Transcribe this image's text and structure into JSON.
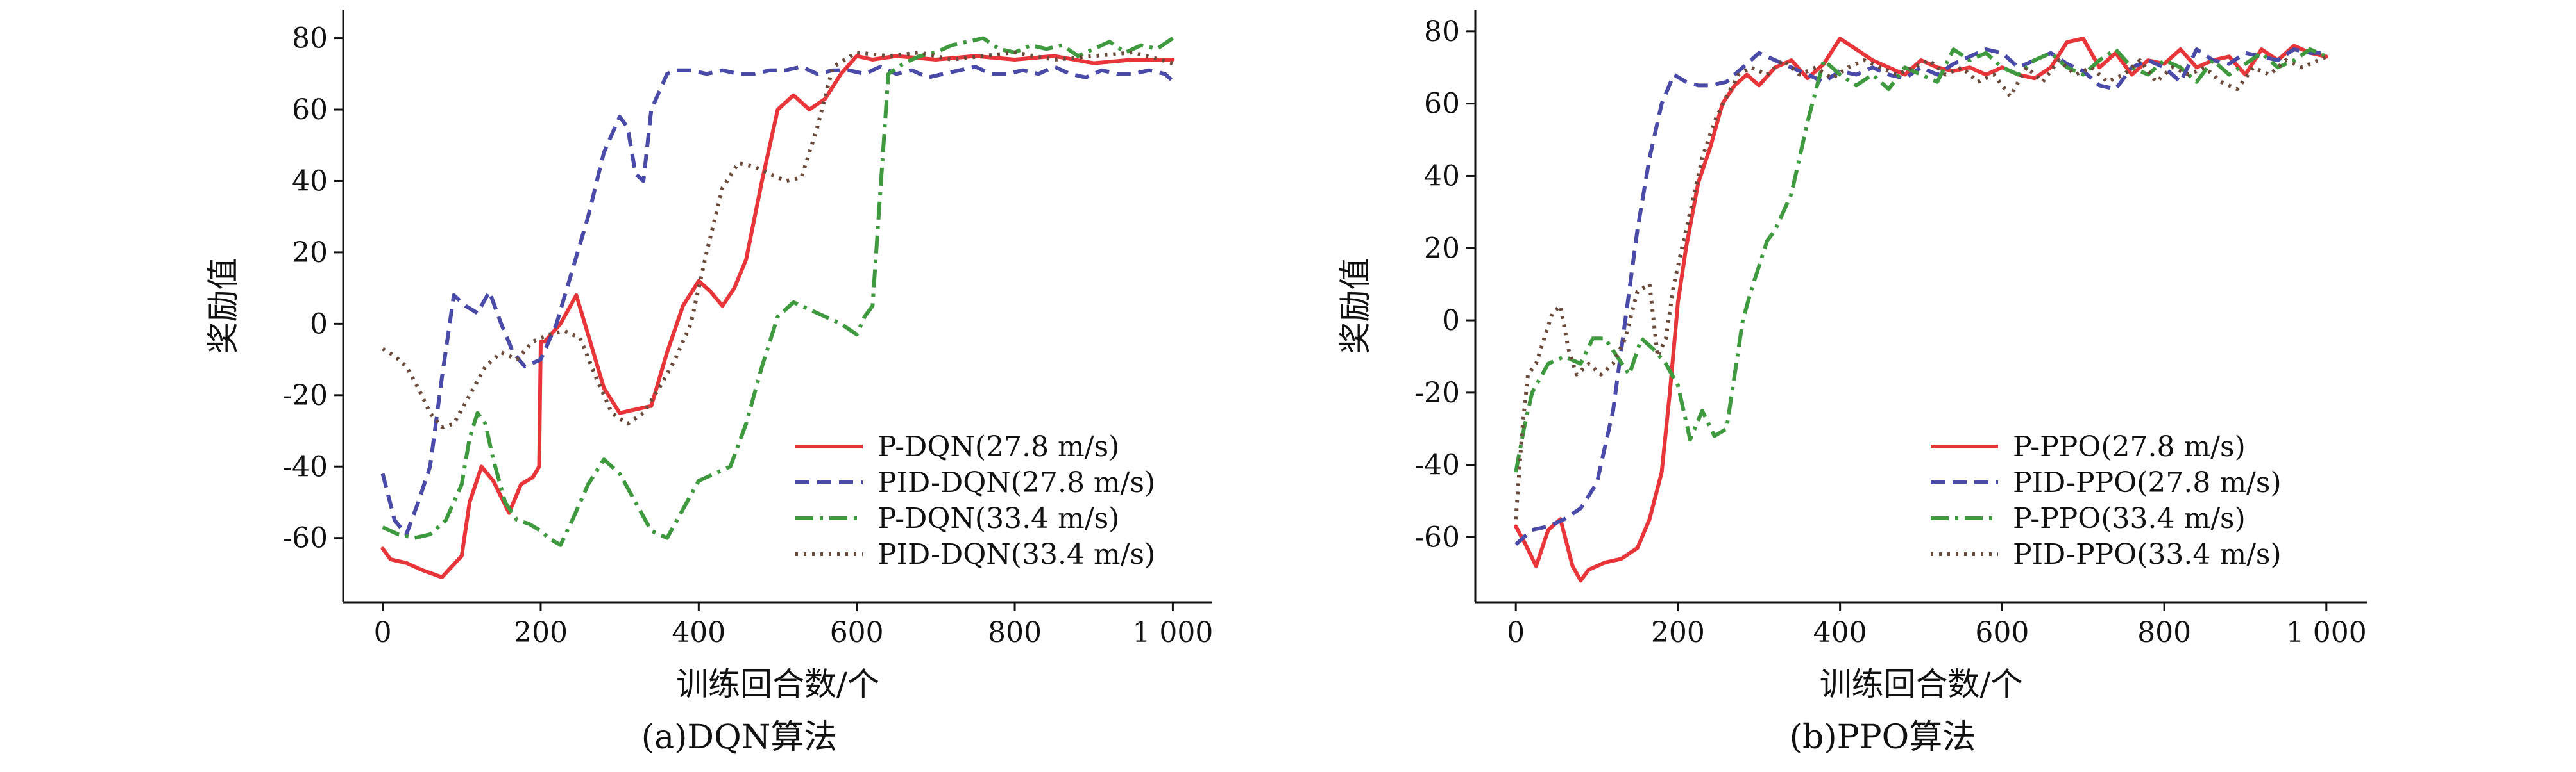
{
  "chart_data": [
    {
      "type": "line",
      "caption": "(a)DQN算法",
      "xlabel": "训练回合数/个",
      "ylabel": "奖励值",
      "xlim": [
        -50,
        1050
      ],
      "ylim": [
        -78,
        88
      ],
      "x_ticks": [
        0,
        200,
        400,
        600,
        800,
        1000
      ],
      "x_tick_labels": [
        "0",
        "200",
        "400",
        "600",
        "800",
        "1 000"
      ],
      "y_ticks": [
        -60,
        -40,
        -20,
        0,
        20,
        40,
        60,
        80
      ],
      "y_tick_labels": [
        "-60",
        "-40",
        "-20",
        "0",
        "20",
        "40",
        "60",
        "80"
      ],
      "legend_position": "bottom-right",
      "series": [
        {
          "name": "P-DQN(27.8 m/s)",
          "color": "#e8353a",
          "dash": "solid",
          "x": [
            0,
            10,
            30,
            50,
            75,
            100,
            110,
            125,
            140,
            160,
            175,
            190,
            198,
            200,
            205,
            225,
            245,
            260,
            280,
            300,
            320,
            340,
            360,
            380,
            400,
            415,
            430,
            445,
            460,
            480,
            500,
            520,
            540,
            560,
            580,
            600,
            620,
            650,
            700,
            750,
            800,
            850,
            900,
            950,
            1000
          ],
          "y": [
            -63,
            -66,
            -67,
            -69,
            -71,
            -65,
            -50,
            -40,
            -44,
            -53,
            -45,
            -43,
            -40,
            -5,
            -5,
            0,
            8,
            -3,
            -18,
            -25,
            -24,
            -23,
            -8,
            5,
            12,
            9,
            5,
            10,
            18,
            40,
            60,
            64,
            60,
            63,
            70,
            75,
            74,
            75,
            74,
            75,
            74,
            75,
            73,
            74,
            74
          ]
        },
        {
          "name": "PID-DQN(27.8 m/s)",
          "color": "#4a4aa8",
          "dash": "dashed",
          "x": [
            0,
            15,
            30,
            45,
            60,
            75,
            90,
            105,
            120,
            135,
            150,
            165,
            180,
            200,
            220,
            240,
            260,
            280,
            300,
            310,
            320,
            330,
            340,
            360,
            370,
            390,
            410,
            430,
            450,
            470,
            490,
            510,
            530,
            550,
            570,
            590,
            610,
            630,
            650,
            670,
            690,
            710,
            730,
            750,
            770,
            790,
            810,
            830,
            850,
            870,
            890,
            910,
            930,
            950,
            970,
            990,
            1000
          ],
          "y": [
            -42,
            -55,
            -59,
            -50,
            -40,
            -15,
            8,
            5,
            3,
            9,
            0,
            -8,
            -12,
            -10,
            0,
            15,
            30,
            48,
            58,
            55,
            42,
            40,
            60,
            70,
            71,
            71,
            70,
            71,
            70,
            70,
            71,
            71,
            72,
            70,
            71,
            71,
            70,
            72,
            70,
            71,
            69,
            70,
            71,
            72,
            70,
            70,
            71,
            70,
            72,
            70,
            69,
            71,
            70,
            70,
            71,
            70,
            68
          ]
        },
        {
          "name": "P-DQN(33.4 m/s)",
          "color": "#3f9a3f",
          "dash": "dashdot",
          "x": [
            0,
            20,
            40,
            60,
            80,
            100,
            110,
            120,
            130,
            140,
            155,
            170,
            185,
            200,
            210,
            225,
            240,
            260,
            280,
            300,
            320,
            340,
            360,
            380,
            400,
            420,
            440,
            460,
            480,
            500,
            520,
            540,
            560,
            580,
            600,
            610,
            620,
            640,
            660,
            680,
            700,
            720,
            740,
            760,
            780,
            800,
            820,
            840,
            860,
            880,
            900,
            920,
            940,
            960,
            980,
            1000
          ],
          "y": [
            -57,
            -59,
            -60,
            -59,
            -55,
            -45,
            -32,
            -25,
            -28,
            -38,
            -50,
            -55,
            -56,
            -58,
            -60,
            -62,
            -55,
            -45,
            -38,
            -42,
            -50,
            -58,
            -60,
            -52,
            -44,
            -42,
            -40,
            -28,
            -12,
            2,
            6,
            4,
            2,
            0,
            -3,
            2,
            5,
            70,
            73,
            75,
            76,
            78,
            79,
            80,
            77,
            76,
            78,
            77,
            78,
            75,
            77,
            79,
            76,
            78,
            77,
            80
          ]
        },
        {
          "name": "PID-DQN(33.4 m/s)",
          "color": "#6a4a3a",
          "dash": "dotted",
          "x": [
            0,
            15,
            30,
            45,
            60,
            75,
            90,
            110,
            130,
            150,
            170,
            190,
            210,
            230,
            250,
            270,
            290,
            310,
            330,
            350,
            370,
            390,
            410,
            430,
            450,
            470,
            490,
            510,
            530,
            550,
            570,
            600,
            640,
            680,
            720,
            760,
            800,
            850,
            900,
            950,
            1000
          ],
          "y": [
            -7,
            -9,
            -12,
            -18,
            -25,
            -29,
            -28,
            -20,
            -12,
            -8,
            -10,
            -5,
            -3,
            -2,
            -4,
            -15,
            -25,
            -28,
            -25,
            -18,
            -10,
            0,
            20,
            38,
            45,
            44,
            42,
            40,
            41,
            55,
            72,
            76,
            75,
            76,
            74,
            75,
            76,
            74,
            75,
            76,
            73
          ]
        }
      ]
    },
    {
      "type": "line",
      "caption": "(b)PPO算法",
      "xlabel": "训练回合数/个",
      "ylabel": "奖励值",
      "xlim": [
        -50,
        1050
      ],
      "ylim": [
        -78,
        86
      ],
      "x_ticks": [
        0,
        200,
        400,
        600,
        800,
        1000
      ],
      "x_tick_labels": [
        "0",
        "200",
        "400",
        "600",
        "800",
        "1 000"
      ],
      "y_ticks": [
        -60,
        -40,
        -20,
        0,
        20,
        40,
        60,
        80
      ],
      "y_tick_labels": [
        "-60",
        "-40",
        "-20",
        "0",
        "20",
        "40",
        "60",
        "80"
      ],
      "legend_position": "bottom-right",
      "series": [
        {
          "name": "P-PPO(27.8 m/s)",
          "color": "#e8353a",
          "dash": "solid",
          "x": [
            0,
            12,
            25,
            40,
            55,
            70,
            80,
            90,
            110,
            130,
            150,
            165,
            180,
            190,
            200,
            210,
            225,
            240,
            255,
            270,
            285,
            300,
            320,
            340,
            360,
            380,
            400,
            420,
            440,
            460,
            480,
            500,
            520,
            540,
            560,
            580,
            600,
            620,
            640,
            660,
            680,
            700,
            720,
            740,
            760,
            780,
            800,
            820,
            840,
            860,
            880,
            900,
            920,
            940,
            960,
            980,
            1000
          ],
          "y": [
            -57,
            -62,
            -68,
            -58,
            -55,
            -68,
            -72,
            -69,
            -67,
            -66,
            -63,
            -55,
            -42,
            -20,
            5,
            20,
            38,
            48,
            60,
            65,
            68,
            65,
            70,
            72,
            67,
            71,
            78,
            75,
            72,
            70,
            68,
            72,
            70,
            69,
            70,
            68,
            70,
            68,
            67,
            70,
            77,
            78,
            70,
            74,
            68,
            72,
            71,
            75,
            70,
            72,
            73,
            68,
            75,
            72,
            76,
            74,
            73
          ]
        },
        {
          "name": "PID-PPO(27.8 m/s)",
          "color": "#4a4aa8",
          "dash": "dashed",
          "x": [
            0,
            20,
            40,
            60,
            80,
            100,
            120,
            135,
            150,
            165,
            180,
            195,
            210,
            225,
            240,
            260,
            280,
            300,
            320,
            340,
            360,
            380,
            400,
            420,
            440,
            460,
            480,
            500,
            520,
            540,
            560,
            580,
            600,
            620,
            640,
            660,
            680,
            700,
            720,
            740,
            760,
            780,
            800,
            820,
            840,
            860,
            880,
            900,
            920,
            940,
            960,
            980,
            1000
          ],
          "y": [
            -62,
            -58,
            -57,
            -55,
            -52,
            -45,
            -25,
            0,
            25,
            45,
            60,
            68,
            66,
            65,
            65,
            66,
            70,
            74,
            72,
            70,
            68,
            66,
            69,
            68,
            70,
            68,
            67,
            70,
            68,
            71,
            73,
            75,
            74,
            70,
            72,
            74,
            71,
            69,
            65,
            64,
            70,
            72,
            70,
            66,
            75,
            72,
            71,
            74,
            73,
            72,
            75,
            74,
            74
          ]
        },
        {
          "name": "P-PPO(33.4 m/s)",
          "color": "#3f9a3f",
          "dash": "dashdot",
          "x": [
            0,
            10,
            20,
            40,
            60,
            80,
            95,
            110,
            125,
            140,
            155,
            170,
            185,
            200,
            215,
            230,
            245,
            260,
            270,
            280,
            290,
            300,
            310,
            320,
            340,
            360,
            380,
            400,
            420,
            440,
            460,
            480,
            500,
            520,
            540,
            560,
            580,
            600,
            620,
            640,
            660,
            680,
            700,
            720,
            740,
            760,
            780,
            800,
            820,
            840,
            860,
            880,
            900,
            920,
            940,
            960,
            980,
            1000
          ],
          "y": [
            -42,
            -30,
            -20,
            -12,
            -10,
            -12,
            -5,
            -5,
            -10,
            -15,
            -5,
            -8,
            -12,
            -18,
            -33,
            -25,
            -32,
            -30,
            -15,
            0,
            8,
            15,
            22,
            25,
            35,
            55,
            72,
            68,
            65,
            68,
            64,
            70,
            68,
            66,
            75,
            72,
            74,
            70,
            68,
            72,
            74,
            70,
            68,
            72,
            75,
            70,
            68,
            72,
            70,
            66,
            72,
            68,
            71,
            74,
            70,
            72,
            75,
            73
          ]
        },
        {
          "name": "PID-PPO(33.4 m/s)",
          "color": "#6a4a3a",
          "dash": "dotted",
          "x": [
            0,
            8,
            15,
            25,
            35,
            45,
            55,
            65,
            75,
            90,
            105,
            120,
            135,
            150,
            165,
            175,
            185,
            195,
            205,
            215,
            230,
            245,
            260,
            275,
            290,
            310,
            330,
            350,
            370,
            390,
            410,
            430,
            450,
            470,
            490,
            510,
            530,
            550,
            570,
            590,
            610,
            630,
            650,
            670,
            690,
            710,
            730,
            750,
            770,
            790,
            810,
            830,
            850,
            870,
            890,
            910,
            930,
            950,
            970,
            990,
            1000
          ],
          "y": [
            -55,
            -30,
            -15,
            -12,
            -5,
            2,
            4,
            -8,
            -15,
            -12,
            -15,
            -12,
            -5,
            8,
            10,
            -10,
            -5,
            10,
            20,
            30,
            45,
            55,
            62,
            68,
            70,
            68,
            72,
            68,
            70,
            67,
            70,
            72,
            70,
            68,
            70,
            72,
            68,
            70,
            66,
            68,
            62,
            70,
            66,
            72,
            68,
            70,
            66,
            68,
            72,
            66,
            70,
            68,
            70,
            66,
            64,
            70,
            68,
            72,
            70,
            72,
            73
          ]
        }
      ]
    }
  ]
}
